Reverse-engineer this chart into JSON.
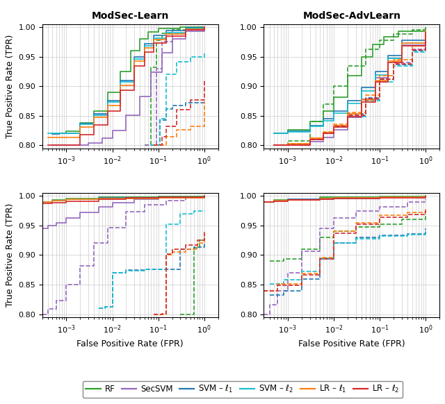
{
  "colors": {
    "RF": "#2ca02c",
    "SecSVM": "#9467bd",
    "SVM_l1": "#1f77b4",
    "SVM_l2": "#17becf",
    "LR_l1": "#ff7f0e",
    "LR_l2": "#d62728"
  },
  "titles": [
    "ModSec-Learn",
    "ModSec-AdvLearn"
  ],
  "ylim": [
    0.795,
    1.005
  ],
  "xlim_min": 0.0003,
  "xlim_max": 2.0,
  "xlabel": "False Positive Rate (FPR)",
  "ylabel": "True Positive Rate (TPR)",
  "yticks": [
    0.8,
    0.85,
    0.9,
    0.95,
    1.0
  ],
  "lw": 1.2,
  "grid_color": "#cccccc"
}
